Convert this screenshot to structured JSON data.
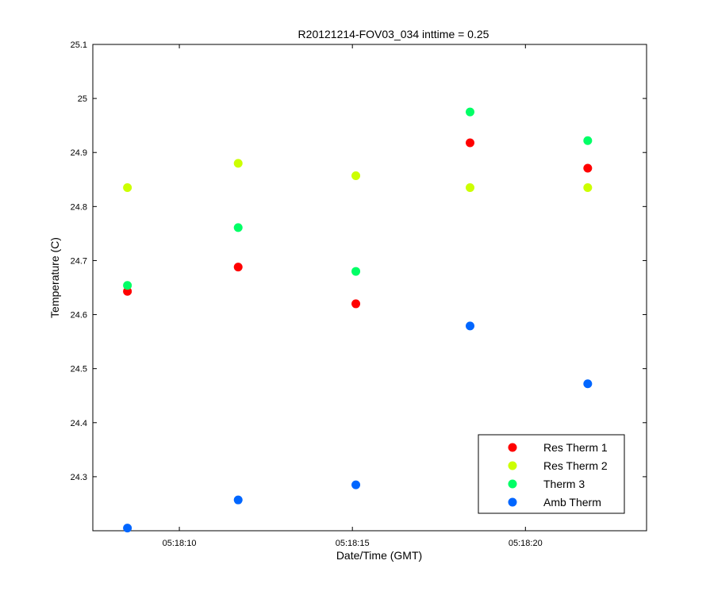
{
  "chart_data": {
    "type": "scatter",
    "title": "R20121214-FOV03_034 inttime = 0.25",
    "xlabel": "Date/Time (GMT)",
    "ylabel": "Temperature (C)",
    "ylim": [
      24.2,
      25.1
    ],
    "xlim": [
      "05:18:07.5",
      "05:18:23.5"
    ],
    "grid": false,
    "legend_position": "bottom-right",
    "y_ticks": [
      "24.3",
      "24.4",
      "24.5",
      "24.6",
      "24.7",
      "24.8",
      "24.9",
      "25",
      "25.1"
    ],
    "x_ticks": [
      "05:18:10",
      "05:18:15",
      "05:18:20"
    ],
    "x": [
      "05:18:08.5",
      "05:18:11.7",
      "05:18:15.1",
      "05:18:18.4",
      "05:18:21.8"
    ],
    "series": [
      {
        "name": "Res Therm 1",
        "color": "#ff0000",
        "values": [
          24.643,
          24.688,
          24.62,
          24.918,
          24.871
        ]
      },
      {
        "name": "Res Therm 2",
        "color": "#ccff00",
        "values": [
          24.835,
          24.88,
          24.857,
          24.835,
          24.835
        ]
      },
      {
        "name": "Therm 3",
        "color": "#00ff66",
        "values": [
          24.654,
          24.761,
          24.68,
          24.975,
          24.922
        ]
      },
      {
        "name": "Amb Therm",
        "color": "#0066ff",
        "values": [
          24.205,
          24.257,
          24.285,
          24.579,
          24.472
        ]
      }
    ]
  }
}
